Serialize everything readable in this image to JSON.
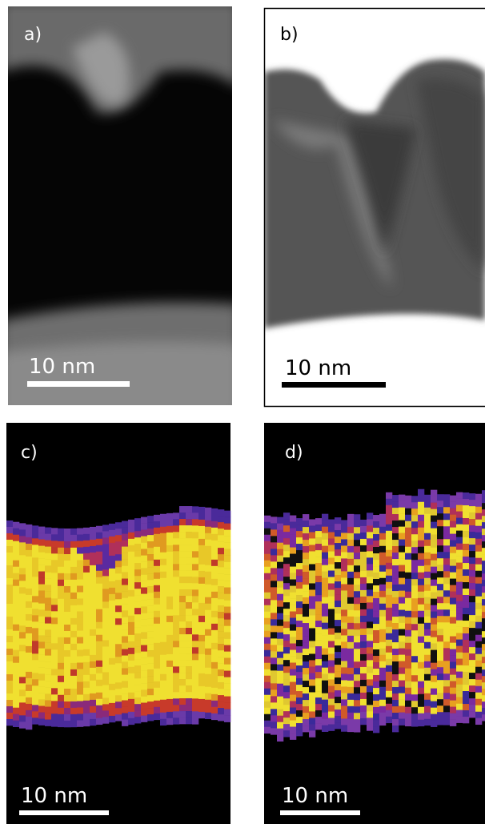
{
  "panels": [
    {
      "label": "a)",
      "scale_bar": "10 nm"
    },
    {
      "label": "b)",
      "scale_bar": "10 nm"
    },
    {
      "label": "c)",
      "scale_bar": "10 nm"
    },
    {
      "label": "d)",
      "scale_bar": "10 nm"
    }
  ]
}
